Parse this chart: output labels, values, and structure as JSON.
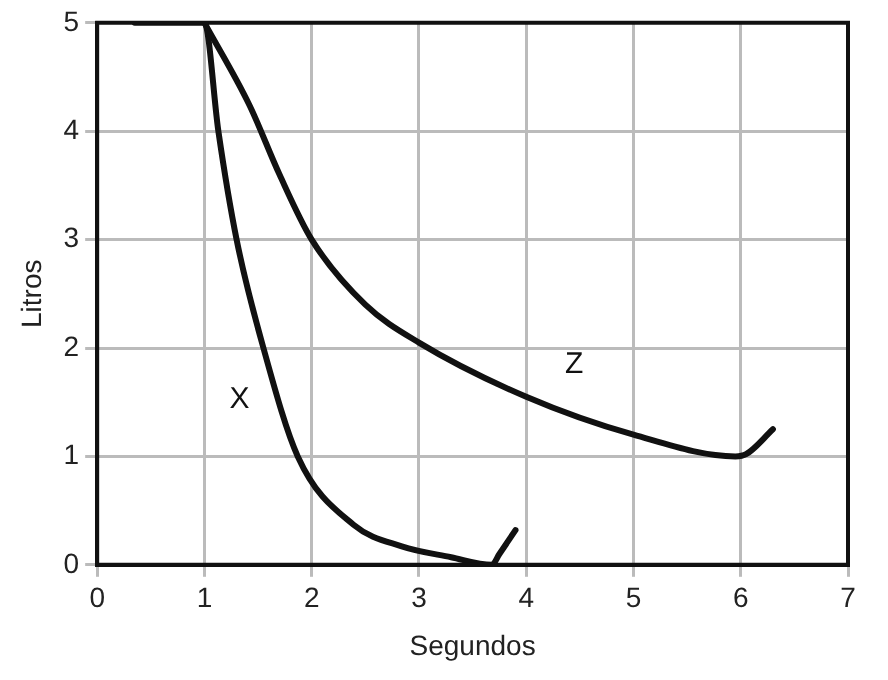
{
  "chart_data": {
    "type": "line",
    "xlabel": "Segundos",
    "ylabel": "Litros",
    "xlim": [
      0,
      7
    ],
    "ylim": [
      0,
      5
    ],
    "xticks": [
      0,
      1,
      2,
      3,
      4,
      5,
      6,
      7
    ],
    "yticks": [
      0,
      1,
      2,
      3,
      4,
      5
    ],
    "grid": true,
    "legend": false,
    "marker": "none",
    "line_style": "solid",
    "series": [
      {
        "name": "X",
        "color": "#111111",
        "x": [
          0.35,
          1,
          1.13,
          1.3,
          1.55,
          1.87,
          2.39,
          2.84,
          3.3,
          3.68,
          3.75,
          3.9
        ],
        "values": [
          5,
          5,
          4,
          3,
          2,
          1,
          0.37,
          0.17,
          0.07,
          0,
          0.1,
          0.32
        ]
      },
      {
        "name": "Z",
        "color": "#111111",
        "x": [
          1,
          1.42,
          1.7,
          2,
          2.5,
          3,
          4,
          5,
          5.95,
          6.05,
          6.3
        ],
        "values": [
          5,
          4.24,
          3.6,
          3,
          2.4,
          2.05,
          1.55,
          1.2,
          1,
          1.02,
          1.25
        ]
      }
    ]
  }
}
